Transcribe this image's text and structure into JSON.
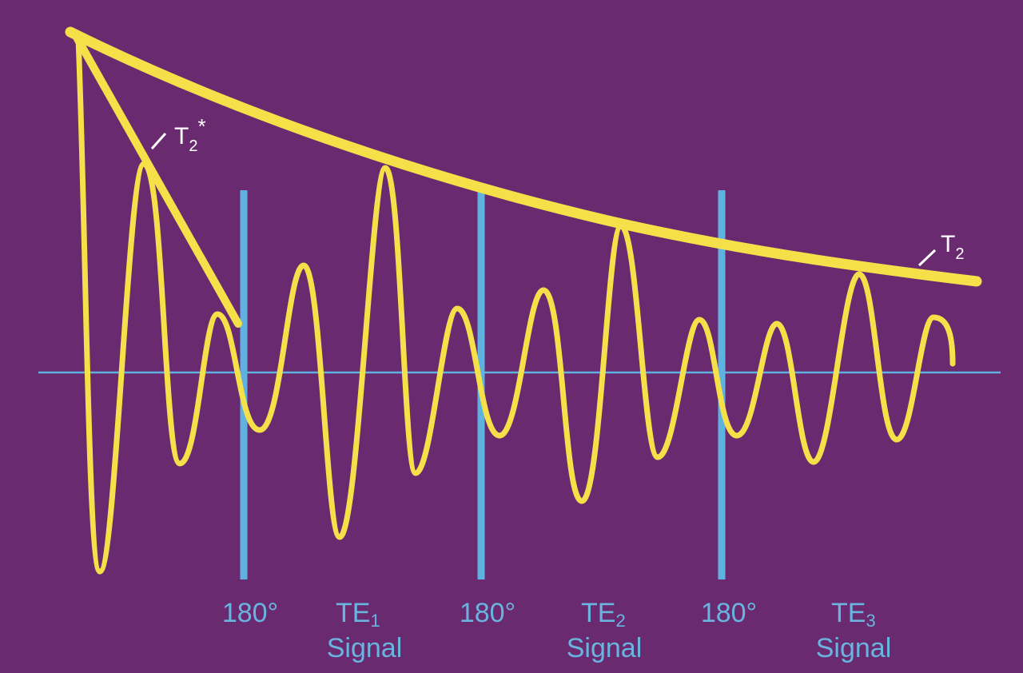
{
  "colors": {
    "background": "#6a2a70",
    "signal": "#f5e04a",
    "pulse": "#5fb2df",
    "label": "#6ab4e0",
    "curve_label": "#ffffff"
  },
  "curves": {
    "t2": {
      "base": "T",
      "sub": "2",
      "sup": ""
    },
    "t2star": {
      "base": "T",
      "sub": "2",
      "sup": "*"
    }
  },
  "pulses": [
    {
      "label": "180°"
    },
    {
      "label": "180°"
    },
    {
      "label": "180°"
    }
  ],
  "echoes": [
    {
      "base": "TE",
      "sub": "1",
      "line2": "Signal"
    },
    {
      "base": "TE",
      "sub": "2",
      "line2": "Signal"
    },
    {
      "base": "TE",
      "sub": "3",
      "line2": "Signal"
    }
  ]
}
